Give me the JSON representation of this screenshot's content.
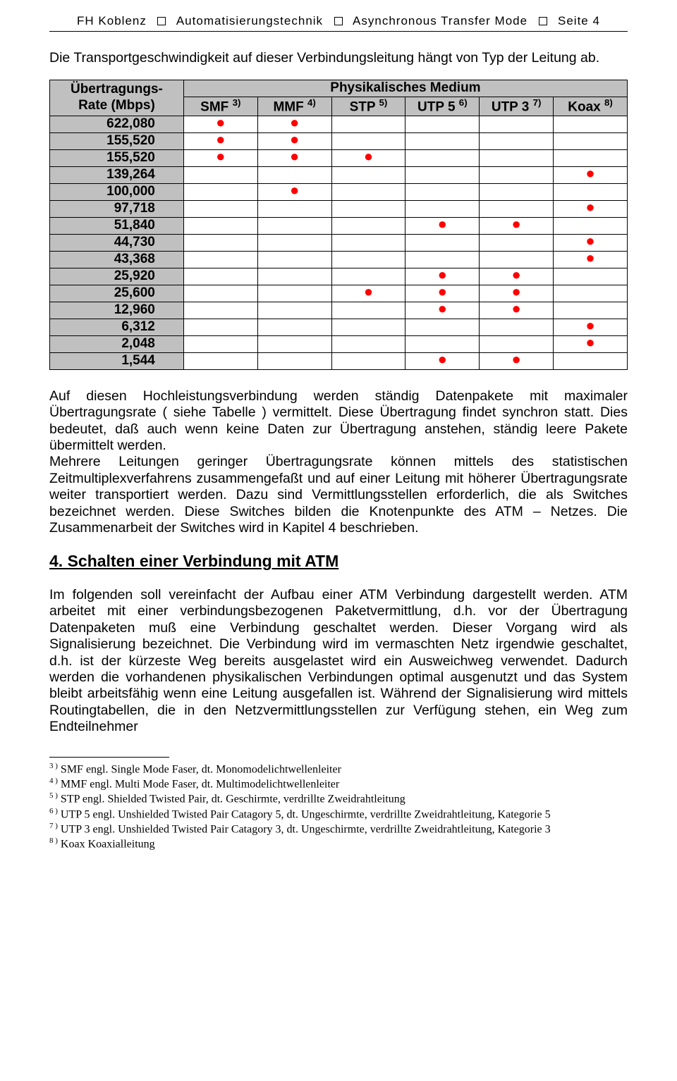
{
  "header": {
    "org": "FH Koblenz",
    "dept": "Automatisierungstechnik",
    "topic": "Asynchronous Transfer Mode",
    "page": "Seite 4"
  },
  "intro": "Die Transportgeschwindigkeit auf dieser Verbindungsleitung hängt von Typ der Leitung ab.",
  "table": {
    "rate_header_line1": "Übertragungs-",
    "rate_header_line2": "Rate (Mbps)",
    "medium_header": "Physikalisches Medium",
    "columns": [
      {
        "label": "SMF",
        "note": "3)"
      },
      {
        "label": "MMF",
        "note": "4)"
      },
      {
        "label": "STP",
        "note": "5)"
      },
      {
        "label": "UTP 5",
        "note": "6)"
      },
      {
        "label": "UTP 3",
        "note": "7)"
      },
      {
        "label": "Koax",
        "note": "8)"
      }
    ],
    "rows": [
      {
        "rate": "622,080",
        "dots": [
          1,
          1,
          0,
          0,
          0,
          0
        ]
      },
      {
        "rate": "155,520",
        "dots": [
          1,
          1,
          0,
          0,
          0,
          0
        ]
      },
      {
        "rate": "155,520",
        "dots": [
          1,
          1,
          1,
          0,
          0,
          0
        ]
      },
      {
        "rate": "139,264",
        "dots": [
          0,
          0,
          0,
          0,
          0,
          1
        ]
      },
      {
        "rate": "100,000",
        "dots": [
          0,
          1,
          0,
          0,
          0,
          0
        ]
      },
      {
        "rate": "97,718",
        "dots": [
          0,
          0,
          0,
          0,
          0,
          1
        ]
      },
      {
        "rate": "51,840",
        "dots": [
          0,
          0,
          0,
          1,
          1,
          0
        ]
      },
      {
        "rate": "44,730",
        "dots": [
          0,
          0,
          0,
          0,
          0,
          1
        ]
      },
      {
        "rate": "43,368",
        "dots": [
          0,
          0,
          0,
          0,
          0,
          1
        ]
      },
      {
        "rate": "25,920",
        "dots": [
          0,
          0,
          0,
          1,
          1,
          0
        ]
      },
      {
        "rate": "25,600",
        "dots": [
          0,
          0,
          1,
          1,
          1,
          0
        ]
      },
      {
        "rate": "12,960",
        "dots": [
          0,
          0,
          0,
          1,
          1,
          0
        ]
      },
      {
        "rate": "6,312",
        "dots": [
          0,
          0,
          0,
          0,
          0,
          1
        ]
      },
      {
        "rate": "2,048",
        "dots": [
          0,
          0,
          0,
          0,
          0,
          1
        ]
      },
      {
        "rate": "1,544",
        "dots": [
          0,
          0,
          0,
          1,
          1,
          0
        ]
      }
    ],
    "dot_color": "#ff0000",
    "header_bg": "#c0c0c0",
    "rate_col_bg": "#c0c0c0",
    "border_color": "#000000"
  },
  "para1": "Auf diesen Hochleistungsverbindung werden ständig Datenpakete mit maximaler Übertragungsrate ( siehe Tabelle ) vermittelt. Diese Übertragung findet synchron statt. Dies bedeutet, daß auch wenn keine Daten zur Übertragung anstehen, ständig leere Pakete übermittelt werden.",
  "para2": "Mehrere Leitungen geringer Übertragungsrate können mittels des statistischen Zeitmultiplexverfahrens zusammengefaßt und auf einer Leitung mit höherer Übertragungsrate weiter transportiert werden. Dazu sind Vermittlungsstellen erforderlich, die als Switches bezeichnet werden. Diese Switches bilden die Knotenpunkte des ATM – Netzes. Die Zusammenarbeit der Switches wird in Kapitel 4 beschrieben.",
  "section_heading": "4. Schalten einer Verbindung mit ATM",
  "para3": "Im folgenden  soll vereinfacht der Aufbau einer ATM Verbindung dargestellt werden. ATM arbeitet mit einer verbindungsbezogenen Paketvermittlung, d.h.  vor der Übertragung Datenpaketen muß eine Verbindung geschaltet werden. Dieser Vorgang wird als Signalisierung bezeichnet. Die Verbindung wird im vermaschten Netz irgendwie geschaltet, d.h. ist der kürzeste Weg bereits ausgelastet wird ein Ausweichweg verwendet. Dadurch werden die vorhandenen physikalischen Verbindungen optimal ausgenutzt und das System bleibt arbeitsfähig wenn eine Leitung ausgefallen ist. Während der Signalisierung wird mittels Routingtabellen, die in den Netzvermittlungsstellen zur Verfügung stehen, ein Weg zum Endteilnehmer",
  "footnotes": [
    {
      "mark": "3 )",
      "text": "SMF engl. Single Mode Faser, dt. Monomodelichtwellenleiter"
    },
    {
      "mark": "4 )",
      "text": "MMF engl. Multi Mode Faser, dt. Multimodelichtwellenleiter"
    },
    {
      "mark": "5 )",
      "text": "STP engl. Shielded Twisted Pair, dt. Geschirmte, verdrillte Zweidrahtleitung"
    },
    {
      "mark": "6 )",
      "text": "UTP 5 engl. Unshielded Twisted Pair Catagory 5, dt. Ungeschirmte, verdrillte Zweidrahtleitung, Kategorie 5"
    },
    {
      "mark": "7 )",
      "text": "UTP 3 engl. Unshielded Twisted Pair Catagory 3, dt. Ungeschirmte, verdrillte Zweidrahtleitung, Kategorie 3"
    },
    {
      "mark": "8 )",
      "text": "Koax Koaxialleitung"
    }
  ]
}
